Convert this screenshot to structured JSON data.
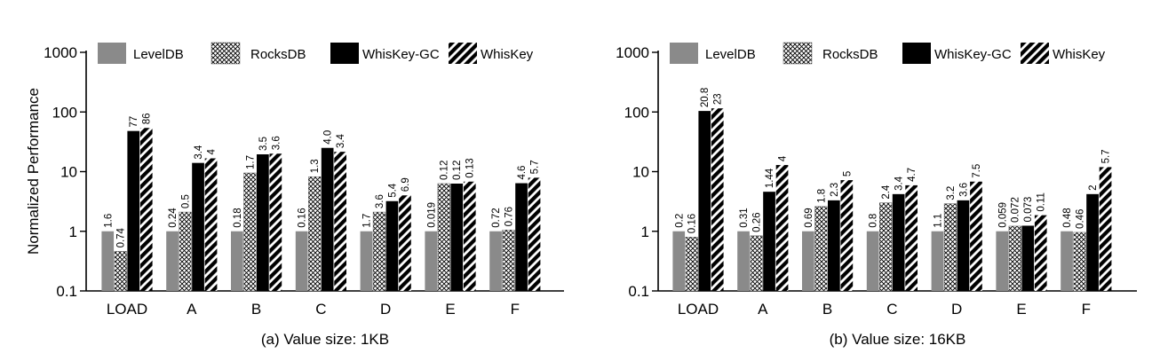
{
  "ylabel": "Normalized Performance",
  "legend": [
    "LevelDB",
    "RocksDB",
    "WhisKey-GC",
    "WhisKey"
  ],
  "colors": {
    "LevelDB": "#8a8a8a",
    "RocksDB": "#ffffff",
    "WhisKey-GC": "#000000",
    "WhisKey": "#000000"
  },
  "chart_data": [
    {
      "type": "bar",
      "title": "(a) Value size: 1KB",
      "ylabel": "Normalized Performance",
      "yscale": "log",
      "ylim": [
        0.1,
        1000
      ],
      "yticks": [
        "0.1",
        "1",
        "10",
        "100",
        "1000"
      ],
      "legend_position": "top",
      "categories": [
        "LOAD",
        "A",
        "B",
        "C",
        "D",
        "E",
        "F"
      ],
      "series": [
        {
          "name": "LevelDB",
          "values": [
            1,
            1,
            1,
            1,
            1,
            1,
            1
          ],
          "labels": [
            "1.6",
            "0.24",
            "0.18",
            "0.16",
            "1.7",
            "0.019",
            "0.72"
          ]
        },
        {
          "name": "RocksDB",
          "values": [
            0.46,
            2.1,
            9.5,
            8.2,
            2.1,
            6.3,
            1.05
          ],
          "labels": [
            "0.74",
            "0.5",
            "1.7",
            "1.3",
            "3.6",
            "0.12",
            "0.76"
          ]
        },
        {
          "name": "WhisKey-GC",
          "values": [
            48,
            14,
            19.5,
            25,
            3.2,
            6.3,
            6.4
          ],
          "labels": [
            "77",
            "3.4",
            "3.5",
            "4.0",
            "5.4",
            "0.12",
            "4.6"
          ]
        },
        {
          "name": "WhisKey",
          "values": [
            54,
            16.7,
            20,
            21.5,
            4,
            6.8,
            7.9
          ],
          "labels": [
            "86",
            "4",
            "3.6",
            "3.4",
            "6.9",
            "0.13",
            "5.7"
          ]
        }
      ]
    },
    {
      "type": "bar",
      "title": "(b) Value size: 16KB",
      "ylabel": "",
      "yscale": "log",
      "ylim": [
        0.1,
        1000
      ],
      "yticks": [
        "0.1",
        "1",
        "10",
        "100",
        "1000"
      ],
      "legend_position": "top",
      "categories": [
        "LOAD",
        "A",
        "B",
        "C",
        "D",
        "E",
        "F"
      ],
      "series": [
        {
          "name": "LevelDB",
          "values": [
            1,
            1,
            1,
            1,
            1,
            1,
            1
          ],
          "labels": [
            "0.2",
            "0.31",
            "0.69",
            "0.8",
            "1.1",
            "0.059",
            "0.48"
          ]
        },
        {
          "name": "RocksDB",
          "values": [
            0.8,
            0.84,
            2.6,
            3,
            2.9,
            1.22,
            0.96
          ],
          "labels": [
            "0.16",
            "0.26",
            "1.8",
            "2.4",
            "3.2",
            "0.072",
            "0.46"
          ]
        },
        {
          "name": "WhisKey-GC",
          "values": [
            104,
            4.6,
            3.3,
            4.2,
            3.3,
            1.24,
            4.2
          ],
          "labels": [
            "20.8",
            "1.44",
            "2.3",
            "3.4",
            "3.6",
            "0.073",
            "2"
          ]
        },
        {
          "name": "WhisKey",
          "values": [
            115,
            12.9,
            7.2,
            5.9,
            6.8,
            1.86,
            11.9
          ],
          "labels": [
            "23",
            "4",
            "5",
            "4.7",
            "7.5",
            "0.11",
            "5.7"
          ]
        }
      ]
    }
  ]
}
